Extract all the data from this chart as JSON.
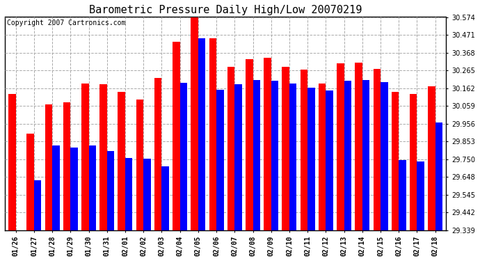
{
  "title": "Barometric Pressure Daily High/Low 20070219",
  "copyright": "Copyright 2007 Cartronics.com",
  "dates": [
    "01/26",
    "01/27",
    "01/28",
    "01/29",
    "01/30",
    "01/31",
    "02/01",
    "02/02",
    "02/03",
    "02/04",
    "02/05",
    "02/06",
    "02/07",
    "02/08",
    "02/09",
    "02/10",
    "02/11",
    "02/12",
    "02/13",
    "02/14",
    "02/15",
    "02/16",
    "02/17",
    "02/18"
  ],
  "highs": [
    30.13,
    29.9,
    30.07,
    30.08,
    30.19,
    30.185,
    30.14,
    30.095,
    30.22,
    30.43,
    30.57,
    30.45,
    30.285,
    30.33,
    30.34,
    30.285,
    30.27,
    30.19,
    30.305,
    30.31,
    30.275,
    30.14,
    30.13,
    30.175
  ],
  "lows": [
    29.339,
    29.63,
    29.83,
    29.82,
    29.83,
    29.8,
    29.76,
    29.755,
    29.71,
    30.195,
    30.45,
    30.155,
    30.185,
    30.21,
    30.205,
    30.19,
    30.165,
    30.148,
    30.205,
    30.208,
    30.198,
    29.745,
    29.74,
    29.965
  ],
  "high_color": "#FF0000",
  "low_color": "#0000FF",
  "bg_color": "#FFFFFF",
  "plot_bg_color": "#FFFFFF",
  "grid_color": "#AAAAAA",
  "ymin": 29.339,
  "ymax": 30.574,
  "yticks": [
    29.339,
    29.442,
    29.545,
    29.648,
    29.75,
    29.853,
    29.956,
    30.059,
    30.162,
    30.265,
    30.368,
    30.471,
    30.574
  ],
  "title_fontsize": 11,
  "copyright_fontsize": 7,
  "tick_fontsize": 7,
  "bar_width": 0.4
}
